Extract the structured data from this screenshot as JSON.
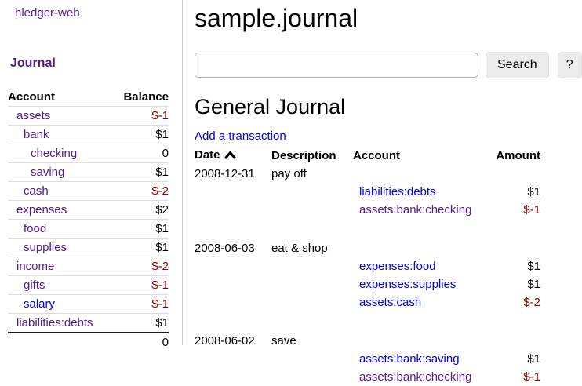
{
  "app": {
    "brand": "hledger-web"
  },
  "colors": {
    "link_blue": "#0000ee",
    "visited_purple": "#551a8b",
    "negative_red": "#8b0000"
  },
  "sidebar": {
    "section_title": "Journal",
    "accounts_table": {
      "columns": {
        "account": "Account",
        "balance": "Balance"
      },
      "rows": [
        {
          "account": "assets",
          "depth": 0,
          "balance": "$-1",
          "visited": true
        },
        {
          "account": "bank",
          "depth": 1,
          "balance": "$1",
          "visited": true
        },
        {
          "account": "checking",
          "depth": 2,
          "balance": "0",
          "visited": true
        },
        {
          "account": "saving",
          "depth": 2,
          "balance": "$1",
          "visited": true
        },
        {
          "account": "cash",
          "depth": 1,
          "balance": "$-2",
          "visited": true
        },
        {
          "account": "expenses",
          "depth": 0,
          "balance": "$2",
          "visited": true
        },
        {
          "account": "food",
          "depth": 1,
          "balance": "$1",
          "visited": true
        },
        {
          "account": "supplies",
          "depth": 1,
          "balance": "$1",
          "visited": true
        },
        {
          "account": "income",
          "depth": 0,
          "balance": "$-2",
          "visited": true
        },
        {
          "account": "gifts",
          "depth": 1,
          "balance": "$-1",
          "visited": true
        },
        {
          "account": "salary",
          "depth": 1,
          "balance": "$-1",
          "visited": false
        },
        {
          "account": "liabilities:debts",
          "depth": 0,
          "balance": "$1",
          "visited": true
        }
      ],
      "total": "0"
    }
  },
  "header": {
    "title": "sample.journal"
  },
  "search": {
    "value": "",
    "placeholder": "",
    "search_label": "Search",
    "help_label": "?"
  },
  "register": {
    "title": "General Journal",
    "add_link": "Add a transaction",
    "columns": {
      "date": "Date",
      "description": "Description",
      "account": "Account",
      "amount": "Amount"
    },
    "sort": "date ascending",
    "transactions": [
      {
        "date": "2008-12-31",
        "description": "pay off",
        "postings": [
          {
            "account": "liabilities:debts",
            "amount": "$1",
            "visited": false
          },
          {
            "account": "assets:bank:checking",
            "amount": "$-1",
            "visited": true
          }
        ]
      },
      {
        "date": "2008-06-03",
        "description": "eat & shop",
        "postings": [
          {
            "account": "expenses:food",
            "amount": "$1",
            "visited": false
          },
          {
            "account": "expenses:supplies",
            "amount": "$1",
            "visited": false
          },
          {
            "account": "assets:cash",
            "amount": "$-2",
            "visited": false
          }
        ]
      },
      {
        "date": "2008-06-02",
        "description": "save",
        "postings": [
          {
            "account": "assets:bank:saving",
            "amount": "$1",
            "visited": false
          },
          {
            "account": "assets:bank:checking",
            "amount": "$-1",
            "visited": true
          }
        ]
      }
    ]
  }
}
